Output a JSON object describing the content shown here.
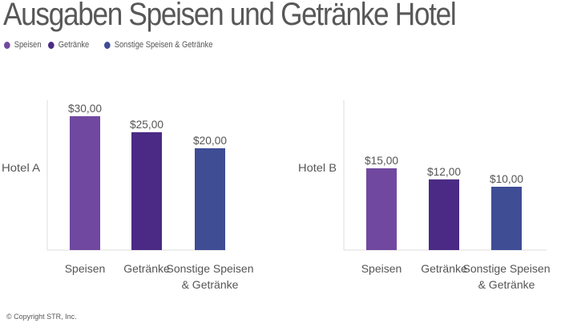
{
  "title": "Ausgaben Speisen und Getränke Hotel",
  "legend": [
    {
      "label": "Speisen",
      "color": "#7148a0"
    },
    {
      "label": "Getränke",
      "color": "#4a2a85"
    },
    {
      "label": "Sonstige Speisen & Getränke",
      "color": "#3f4d95"
    }
  ],
  "copyright": "© Copyright STR, Inc.",
  "chart_data": [
    {
      "type": "bar",
      "panel_label": "Hotel A",
      "categories": [
        [
          "Speisen"
        ],
        [
          "Getränke"
        ],
        [
          "Sonstige Speisen",
          "& Getränke"
        ]
      ],
      "values": [
        30,
        25,
        20
      ],
      "data_labels": [
        "$30,00",
        "$25,00",
        "$20,00"
      ],
      "colors": [
        "#7148a0",
        "#4a2a85",
        "#3f4d95"
      ],
      "grid": false
    },
    {
      "type": "bar",
      "panel_label": "Hotel B",
      "categories": [
        [
          "Speisen"
        ],
        [
          "Getränke"
        ],
        [
          "Sonstige Speisen",
          "& Getränke"
        ]
      ],
      "values": [
        15,
        12,
        10
      ],
      "data_labels": [
        "$15,00",
        "$12,00",
        "$10,00"
      ],
      "colors": [
        "#7148a0",
        "#4a2a85",
        "#3f4d95"
      ],
      "grid": false
    }
  ]
}
